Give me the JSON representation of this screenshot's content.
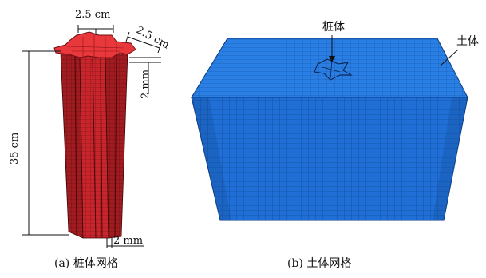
{
  "panel_a": {
    "dim_top_width": "2.5 cm",
    "dim_top_depth": "2.5 cm",
    "dim_flange": "2 mm",
    "dim_height": "35 cm",
    "dim_bottom": "2 mm",
    "caption": "(a) 桩体网格",
    "pile_color": "#c8262c",
    "pile_top_color": "#e8383c"
  },
  "panel_b": {
    "label_pile": "桩体",
    "label_soil": "土体",
    "caption": "(b) 土体网格",
    "soil_color": "#1f6fd6"
  }
}
